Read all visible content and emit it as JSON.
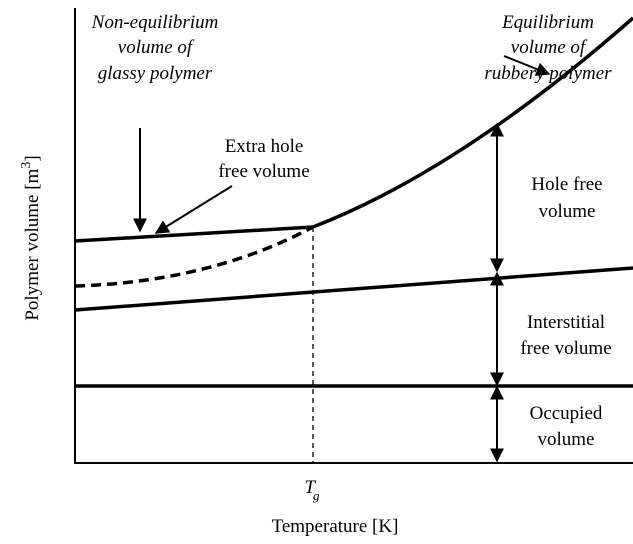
{
  "labels": {
    "glassy": [
      "Non-equilibrium",
      "volume of",
      "glassy polymer"
    ],
    "rubbery": [
      "Equilibrium",
      "volume of",
      "rubbery polymer"
    ],
    "extra_hole": [
      "Extra hole",
      "free volume"
    ],
    "hole_free": [
      "Hole free",
      "volume"
    ],
    "interstitial": [
      "Interstitial",
      "free volume"
    ],
    "occupied": [
      "Occupied",
      "volume"
    ]
  },
  "tg": {
    "symbol": "T",
    "subscript": "g"
  },
  "x_axis_label": "Temperature [K]",
  "y_axis_label": {
    "text": "Polymer volume [m",
    "superscript": "3",
    "suffix": "]"
  }
}
